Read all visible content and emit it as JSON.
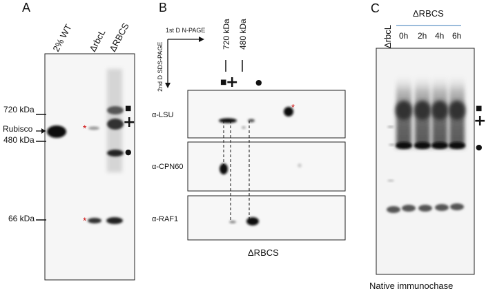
{
  "panel_a": {
    "letter": "A",
    "lanes": [
      "2% WT",
      "ΔrbcL",
      "ΔRBCS"
    ],
    "markers": [
      "720 kDa",
      "480 kDa",
      "66 kDa"
    ],
    "rubisco_label": "Rubisco",
    "asterisk": "*"
  },
  "panel_b": {
    "letter": "B",
    "axis_first_d": "1st D N-PAGE",
    "axis_second_d": "2nd D SDS-PAGE",
    "size_labels": [
      "720 kDa",
      "480 kDa"
    ],
    "blots": [
      "α-LSU",
      "α-CPN60",
      "α-RAF1"
    ],
    "caption": "ΔRBCS",
    "asterisk": "*"
  },
  "panel_c": {
    "letter": "C",
    "lane_deltarbcl": "ΔrbcL",
    "group_title": "ΔRBCS",
    "timepoints": [
      "0h",
      "2h",
      "4h",
      "6h"
    ],
    "caption": "Native immunochase"
  },
  "symbols": {
    "square": "■",
    "plus": "+",
    "dot": "●"
  },
  "colors": {
    "asterisk": "#d01010",
    "group_line": "#7aa6cf",
    "band": "#111111"
  }
}
